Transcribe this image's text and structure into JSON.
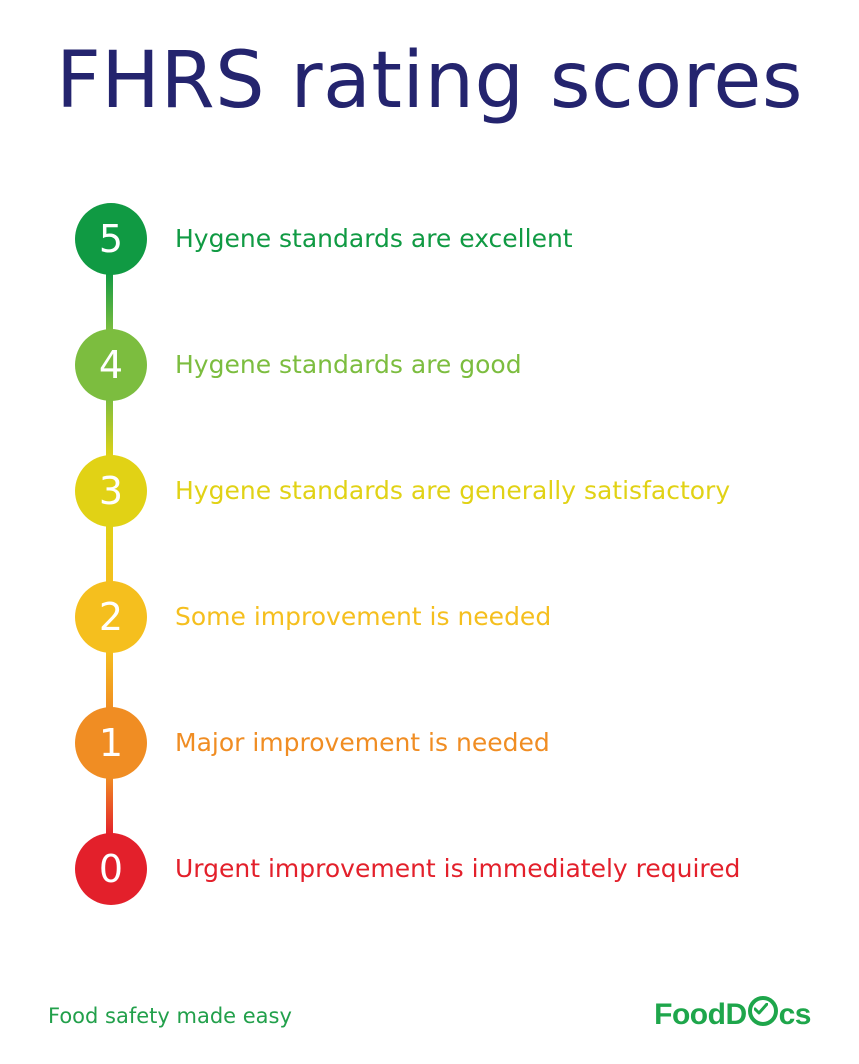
{
  "title": "FHRS rating scores",
  "ratings": [
    {
      "score": "5",
      "label": "Hygene standards are excellent",
      "color": "#109a43"
    },
    {
      "score": "4",
      "label": "Hygene standards are good",
      "color": "#7cbd3f"
    },
    {
      "score": "3",
      "label": "Hygene standards are generally satisfactory",
      "color": "#e1d215"
    },
    {
      "score": "2",
      "label": "Some improvement is needed",
      "color": "#f5bf1e"
    },
    {
      "score": "1",
      "label": "Major improvement is needed",
      "color": "#f08d23"
    },
    {
      "score": "0",
      "label": "Urgent improvement is immediately required",
      "color": "#e3202b"
    }
  ],
  "footer": {
    "tagline": "Food safety made easy",
    "logo_prefix": "FoodD",
    "logo_suffix": "cs"
  }
}
